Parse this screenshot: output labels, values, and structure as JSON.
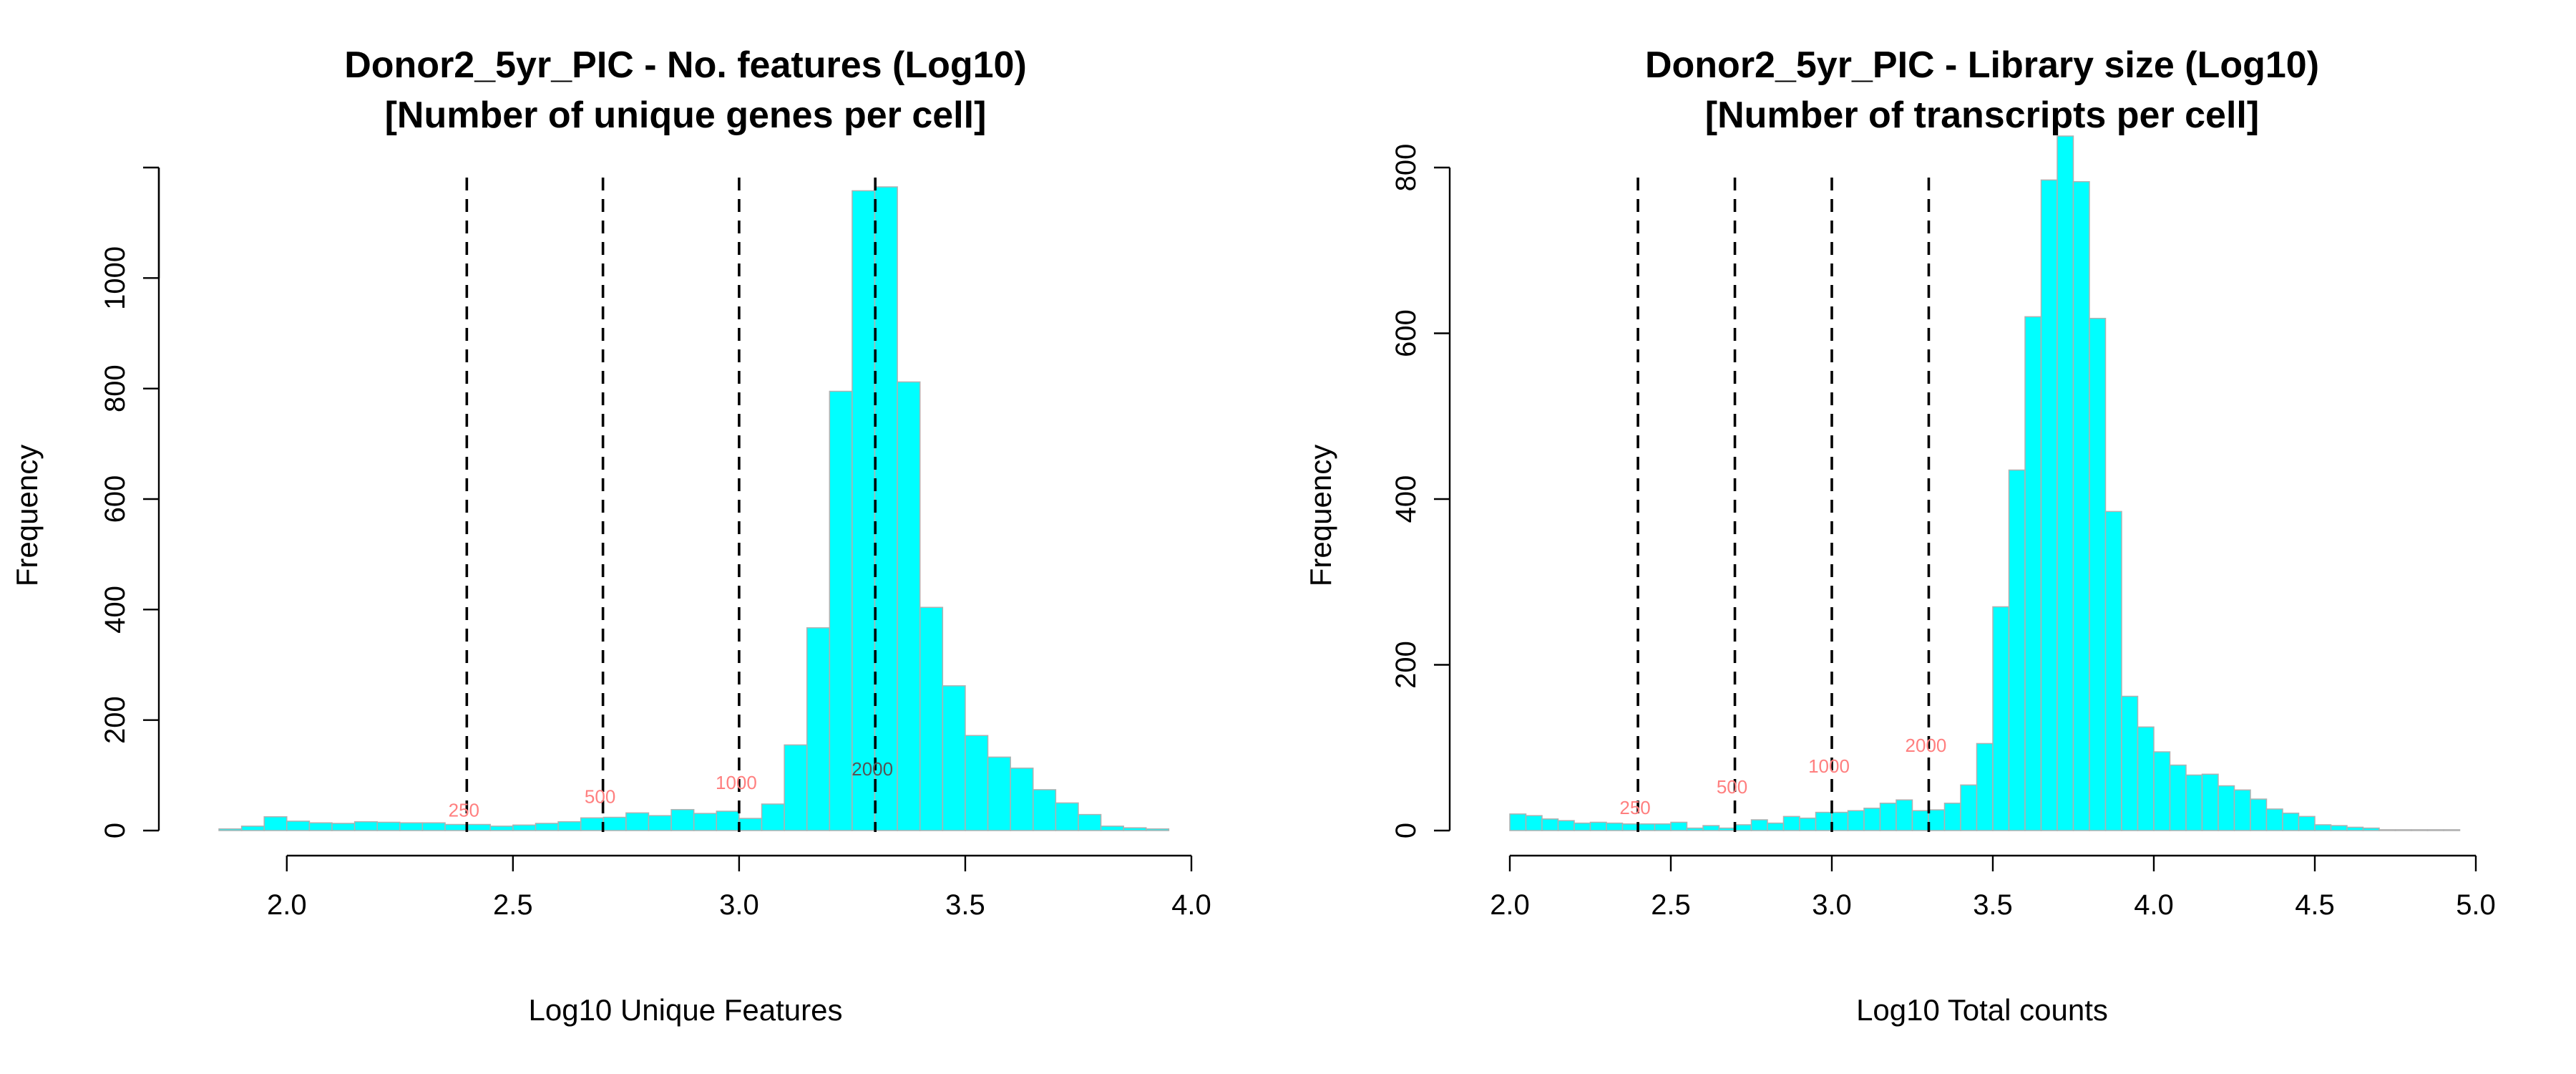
{
  "figure": {
    "bar_color": "#00ffff",
    "bar_border_color": "#b0b0b0",
    "threshold_line_color": "#000000",
    "threshold_label_color": "#ff7f7f"
  },
  "chart_data": [
    {
      "type": "bar",
      "title": "Donor2_5yr_PIC - No. features (Log10)",
      "subtitle": "[Number of unique genes per cell]",
      "xlabel": "Log10 Unique Features",
      "ylabel": "Frequency",
      "xlim": [
        1.85,
        4.0
      ],
      "ylim": [
        0,
        1200
      ],
      "x_ticks": [
        2.0,
        2.5,
        3.0,
        3.5,
        4.0
      ],
      "x_tick_labels": [
        "2.0",
        "2.5",
        "3.0",
        "3.5",
        "4.0"
      ],
      "y_ticks": [
        0,
        200,
        400,
        600,
        800,
        1000
      ],
      "y_tick_labels": [
        "0",
        "200",
        "400",
        "600",
        "800",
        "1000"
      ],
      "bin_width": 0.05,
      "bin_starts": [
        1.85,
        1.9,
        1.95,
        2.0,
        2.05,
        2.1,
        2.15,
        2.2,
        2.25,
        2.3,
        2.35,
        2.4,
        2.45,
        2.5,
        2.55,
        2.6,
        2.65,
        2.7,
        2.75,
        2.8,
        2.85,
        2.9,
        2.95,
        3.0,
        3.05,
        3.1,
        3.15,
        3.2,
        3.25,
        3.3,
        3.35,
        3.4,
        3.45,
        3.5,
        3.55,
        3.6,
        3.65,
        3.7,
        3.75,
        3.8,
        3.85,
        3.9
      ],
      "values": [
        3,
        8,
        25,
        17,
        14,
        13,
        16,
        15,
        14,
        14,
        11,
        11,
        8,
        10,
        13,
        16,
        23,
        24,
        32,
        27,
        38,
        31,
        35,
        22,
        48,
        155,
        367,
        795,
        1158,
        1165,
        812,
        404,
        262,
        172,
        133,
        113,
        74,
        50,
        29,
        8,
        5,
        3
      ],
      "thresholds": [
        {
          "x": 2.39794,
          "label": "250",
          "label_y": 25,
          "label_color": "#ff7f7f"
        },
        {
          "x": 2.69897,
          "label": "500",
          "label_y": 50,
          "label_color": "#ff7f7f"
        },
        {
          "x": 3.0,
          "label": "1000",
          "label_y": 75,
          "label_color": "#ff7f7f"
        },
        {
          "x": 3.30103,
          "label": "2000",
          "label_y": 100,
          "label_color": "#555555"
        }
      ]
    },
    {
      "type": "bar",
      "title": "Donor2_5yr_PIC - Library size (Log10)",
      "subtitle": "[Number of transcripts per cell]",
      "xlabel": "Log10 Total counts",
      "ylabel": "Frequency",
      "xlim": [
        2.0,
        5.0
      ],
      "ylim": [
        0,
        800
      ],
      "x_ticks": [
        2.0,
        2.5,
        3.0,
        3.5,
        4.0,
        4.5,
        5.0
      ],
      "x_tick_labels": [
        "2.0",
        "2.5",
        "3.0",
        "3.5",
        "4.0",
        "4.5",
        "5.0"
      ],
      "y_ticks": [
        0,
        200,
        400,
        600,
        800
      ],
      "y_tick_labels": [
        "0",
        "200",
        "400",
        "600",
        "800"
      ],
      "bin_width": 0.05,
      "bin_starts": [
        2.0,
        2.05,
        2.1,
        2.15,
        2.2,
        2.25,
        2.3,
        2.35,
        2.4,
        2.45,
        2.5,
        2.55,
        2.6,
        2.65,
        2.7,
        2.75,
        2.8,
        2.85,
        2.9,
        2.95,
        3.0,
        3.05,
        3.1,
        3.15,
        3.2,
        3.25,
        3.3,
        3.35,
        3.4,
        3.45,
        3.5,
        3.55,
        3.6,
        3.65,
        3.7,
        3.75,
        3.8,
        3.85,
        3.9,
        3.95,
        4.0,
        4.05,
        4.1,
        4.15,
        4.2,
        4.25,
        4.3,
        4.35,
        4.4,
        4.45,
        4.5,
        4.55,
        4.6,
        4.65,
        4.7,
        4.75,
        4.8,
        4.85,
        4.9
      ],
      "values": [
        20,
        18,
        14,
        12,
        9,
        10,
        9,
        8,
        8,
        8,
        10,
        3,
        6,
        3,
        7,
        13,
        9,
        17,
        15,
        22,
        22,
        24,
        27,
        33,
        37,
        24,
        25,
        33,
        55,
        105,
        270,
        435,
        620,
        785,
        838,
        783,
        618,
        385,
        162,
        125,
        95,
        79,
        67,
        68,
        54,
        49,
        38,
        26,
        21,
        17,
        7,
        6,
        4,
        3,
        1,
        1,
        1,
        1,
        1
      ],
      "thresholds": [
        {
          "x": 2.39794,
          "label": "250",
          "label_y": 20,
          "label_color": "#ff7f7f"
        },
        {
          "x": 2.69897,
          "label": "500",
          "label_y": 45,
          "label_color": "#ff7f7f"
        },
        {
          "x": 3.0,
          "label": "1000",
          "label_y": 70,
          "label_color": "#ff7f7f"
        },
        {
          "x": 3.30103,
          "label": "2000",
          "label_y": 95,
          "label_color": "#ff7f7f"
        }
      ]
    }
  ]
}
